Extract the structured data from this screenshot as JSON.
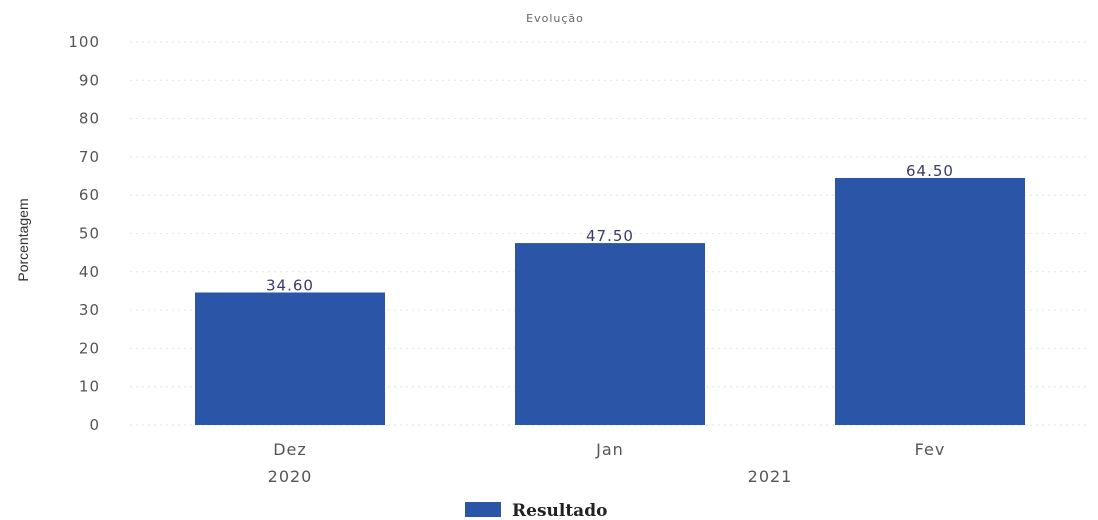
{
  "chart_data": {
    "type": "bar",
    "title": "Evolução",
    "ylabel": "Porcentagem",
    "xlabel": "",
    "categories": [
      "Dez",
      "Jan",
      "Fev"
    ],
    "year_groups": [
      {
        "label": "2020",
        "categories": [
          "Dez"
        ]
      },
      {
        "label": "2021",
        "categories": [
          "Jan",
          "Fev"
        ]
      }
    ],
    "series": [
      {
        "name": "Resultado",
        "values": [
          34.6,
          47.5,
          64.5
        ],
        "data_labels": [
          "34.60",
          "47.50",
          "64.50"
        ]
      }
    ],
    "ylim": [
      0,
      100
    ],
    "yticks": [
      0,
      10,
      20,
      30,
      40,
      50,
      60,
      70,
      80,
      90,
      100
    ],
    "grid": true,
    "legend_position": "bottom"
  },
  "colors": {
    "bar": "#2b56a8",
    "grid": "#e6e6e6"
  }
}
